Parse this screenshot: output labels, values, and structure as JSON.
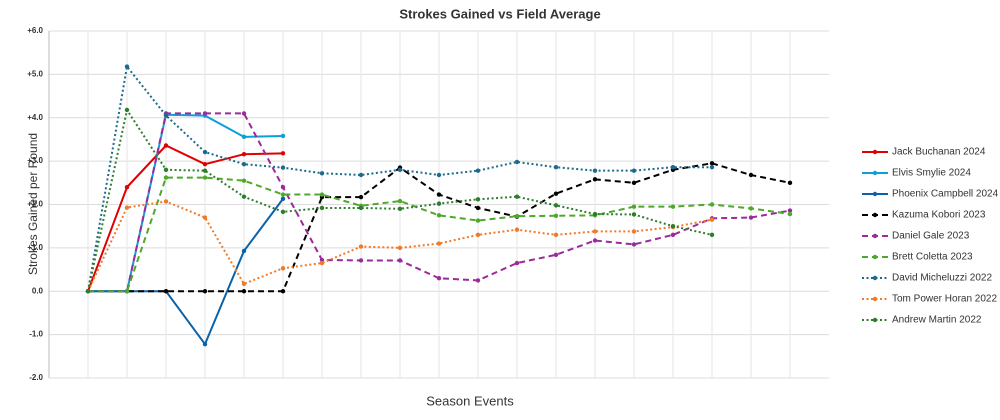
{
  "chart_data": {
    "type": "line",
    "title": "Strokes Gained vs Field Average",
    "y_label": "Strokes Gained per Round",
    "x_label": "Season Events",
    "categories": [
      null,
      null,
      null,
      null,
      null,
      null,
      null,
      null,
      null,
      null,
      null,
      null,
      null,
      null,
      null,
      null,
      null,
      null,
      null
    ],
    "ylim": [
      -2,
      6
    ],
    "yticks": [
      {
        "value": 6,
        "label": "+6.0"
      },
      {
        "value": 5,
        "label": "+5.0"
      },
      {
        "value": 4,
        "label": "+4.0"
      },
      {
        "value": 3,
        "label": "+3.0"
      },
      {
        "value": 2,
        "label": "+2.0"
      },
      {
        "value": 1,
        "label": "+1.0"
      },
      {
        "value": 0,
        "label": "0.0"
      },
      {
        "value": -1,
        "label": "-1.0"
      },
      {
        "value": -2,
        "label": "-2.0"
      }
    ],
    "grid": true,
    "legend": "right",
    "series": [
      {
        "name": "Jack Buchanan 2024",
        "color": "#e00000",
        "style": "solid",
        "values": [
          0,
          2.4,
          3.36,
          2.93,
          3.16,
          3.18,
          null,
          null,
          null,
          null,
          null,
          null,
          null,
          null,
          null,
          null,
          null,
          null,
          null
        ]
      },
      {
        "name": "Elvis Smylie 2024",
        "color": "#0aa0d8",
        "style": "solid",
        "values": [
          0,
          0,
          4.07,
          4.05,
          3.56,
          3.58,
          null,
          null,
          null,
          null,
          null,
          null,
          null,
          null,
          null,
          null,
          null,
          null,
          null
        ]
      },
      {
        "name": "Phoenix Campbell 2024",
        "color": "#0b62a8",
        "style": "solid",
        "values": [
          0,
          0,
          0,
          -1.22,
          0.93,
          2.13,
          null,
          null,
          null,
          null,
          null,
          null,
          null,
          null,
          null,
          null,
          null,
          null,
          null
        ]
      },
      {
        "name": "Kazuma Kobori 2023",
        "color": "#000000",
        "style": "dashed",
        "values": [
          0,
          0,
          0,
          0,
          0,
          0,
          2.17,
          2.17,
          2.85,
          2.23,
          1.92,
          1.72,
          2.25,
          2.58,
          2.5,
          2.8,
          2.95,
          2.68,
          2.5
        ]
      },
      {
        "name": "Daniel Gale 2023",
        "color": "#9b2a9b",
        "style": "dashed",
        "values": [
          0,
          0,
          4.1,
          4.1,
          4.1,
          2.4,
          0.72,
          0.71,
          0.71,
          0.3,
          0.25,
          0.65,
          0.84,
          1.17,
          1.08,
          1.3,
          1.68,
          1.7,
          1.86
        ]
      },
      {
        "name": "Brett Coletta 2023",
        "color": "#4ea82a",
        "style": "dashed",
        "values": [
          0,
          0,
          2.62,
          2.62,
          2.55,
          2.23,
          2.23,
          1.97,
          2.08,
          1.75,
          1.63,
          1.73,
          1.74,
          1.75,
          1.95,
          1.95,
          2.0,
          1.91,
          1.78
        ]
      },
      {
        "name": "David Micheluzzi 2022",
        "color": "#1b6b8a",
        "style": "dotted",
        "values": [
          0,
          5.18,
          4.05,
          3.21,
          2.93,
          2.85,
          2.72,
          2.68,
          2.8,
          2.68,
          2.78,
          2.98,
          2.86,
          2.78,
          2.78,
          2.86,
          2.86,
          null,
          null
        ]
      },
      {
        "name": "Tom Power Horan 2022",
        "color": "#f07a2a",
        "style": "dotted",
        "values": [
          0,
          1.93,
          2.07,
          1.7,
          0.17,
          0.53,
          0.65,
          1.03,
          1.0,
          1.1,
          1.3,
          1.42,
          1.3,
          1.38,
          1.38,
          1.48,
          1.65,
          null,
          null
        ]
      },
      {
        "name": "Andrew Martin 2022",
        "color": "#2e7d2e",
        "style": "dotted",
        "values": [
          0,
          4.18,
          2.8,
          2.78,
          2.18,
          1.83,
          1.92,
          1.92,
          1.9,
          2.02,
          2.12,
          2.18,
          1.98,
          1.78,
          1.77,
          1.5,
          1.3,
          null,
          null
        ]
      }
    ]
  }
}
